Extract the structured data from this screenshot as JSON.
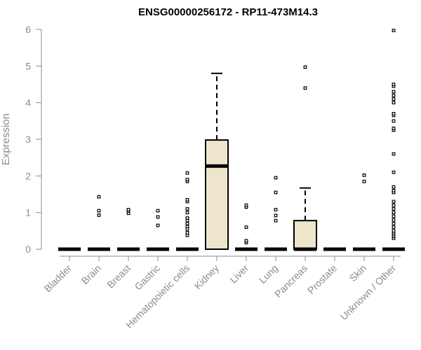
{
  "chart_data": {
    "type": "boxplot",
    "title": "ENSG00000256172 - RP11-473M14.3",
    "ylabel": "Expression",
    "xlabel": "",
    "ylim": [
      0,
      6
    ],
    "yticks": [
      0,
      1,
      2,
      3,
      4,
      5,
      6
    ],
    "grid": false,
    "colors": {
      "box_fill": "#ede6cc",
      "stroke": "#000000",
      "axis": "#8c8c8c"
    },
    "categories": [
      "Bladder",
      "Brain",
      "Breast",
      "Gastric",
      "Hematopoietic cells",
      "Kidney",
      "Liver",
      "Lung",
      "Pancreas",
      "Prostate",
      "Skin",
      "Unknown / Other"
    ],
    "boxes": [
      {
        "min": 0,
        "q1": 0,
        "median": 0,
        "q3": 0,
        "max": 0,
        "outliers": []
      },
      {
        "min": 0,
        "q1": 0,
        "median": 0,
        "q3": 0,
        "max": 0,
        "outliers": [
          0.93,
          1.05,
          1.43
        ]
      },
      {
        "min": 0,
        "q1": 0,
        "median": 0,
        "q3": 0,
        "max": 0,
        "outliers": [
          0.98,
          1.04,
          1.08
        ]
      },
      {
        "min": 0,
        "q1": 0,
        "median": 0,
        "q3": 0,
        "max": 0,
        "outliers": [
          0.65,
          0.88,
          1.05
        ]
      },
      {
        "min": 0,
        "q1": 0,
        "median": 0,
        "q3": 0,
        "max": 0,
        "outliers": [
          0.38,
          0.45,
          0.55,
          0.62,
          0.7,
          0.78,
          0.85,
          1.0,
          1.1,
          1.3,
          1.35,
          1.85,
          1.9,
          2.08
        ]
      },
      {
        "min": 0,
        "q1": 0,
        "median": 2.27,
        "q3": 2.98,
        "max": 4.8,
        "outliers": []
      },
      {
        "min": 0,
        "q1": 0,
        "median": 0,
        "q3": 0,
        "max": 0,
        "outliers": [
          0.18,
          0.23,
          0.6,
          1.15,
          1.2
        ]
      },
      {
        "min": 0,
        "q1": 0,
        "median": 0,
        "q3": 0,
        "max": 0,
        "outliers": [
          0.78,
          0.92,
          1.08,
          1.55,
          1.95
        ]
      },
      {
        "min": 0,
        "q1": 0,
        "median": 0,
        "q3": 0.78,
        "max": 1.67,
        "outliers": [
          4.4,
          4.97
        ]
      },
      {
        "min": 0,
        "q1": 0,
        "median": 0,
        "q3": 0,
        "max": 0,
        "outliers": []
      },
      {
        "min": 0,
        "q1": 0,
        "median": 0,
        "q3": 0,
        "max": 0,
        "outliers": [
          1.85,
          2.02
        ]
      },
      {
        "min": 0,
        "q1": 0,
        "median": 0,
        "q3": 0,
        "max": 0,
        "outliers": [
          0.3,
          0.35,
          0.4,
          0.45,
          0.5,
          0.6,
          0.7,
          0.8,
          0.9,
          1.0,
          1.1,
          1.2,
          1.3,
          1.55,
          1.6,
          1.7,
          2.1,
          2.6,
          3.25,
          3.3,
          3.5,
          3.65,
          3.7,
          4.0,
          4.1,
          4.2,
          4.3,
          4.45,
          4.5,
          5.97
        ]
      }
    ]
  }
}
